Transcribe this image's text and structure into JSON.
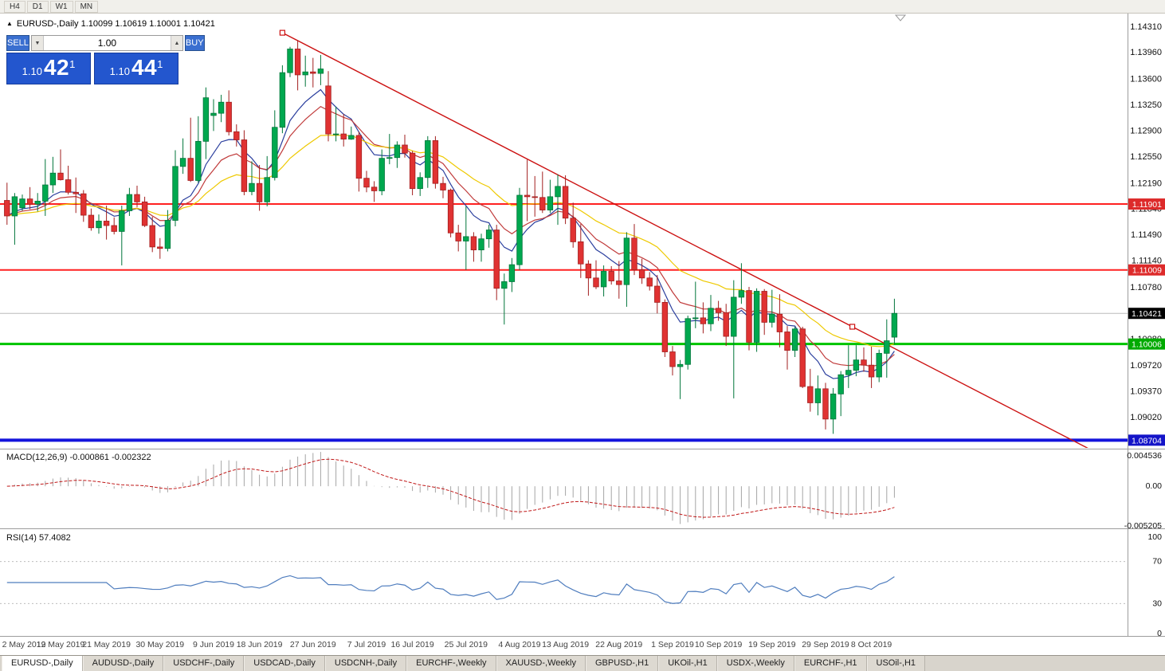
{
  "toolbar": {
    "timeframes": [
      "H4",
      "D1",
      "W1",
      "MN"
    ]
  },
  "chart_header": {
    "title": "EURUSD-,Daily 1.10099 1.10619 1.10001 1.10421"
  },
  "trade_panel": {
    "sell_label": "SELL",
    "buy_label": "BUY",
    "volume": "1.00",
    "sell_price": {
      "prefix": "1.10",
      "big": "42",
      "sup": "1"
    },
    "buy_price": {
      "prefix": "1.10",
      "big": "44",
      "sup": "1"
    },
    "accent_color": "#2356CE"
  },
  "tabs": {
    "active_index": 0,
    "items": [
      "EURUSD-,Daily",
      "AUDUSD-,Daily",
      "USDCHF-,Daily",
      "USDCAD-,Daily",
      "USDCNH-,Daily",
      "EURCHF-,Weekly",
      "XAUUSD-,Weekly",
      "GBPUSD-,H1",
      "UKOil-,H1",
      "USDX-,Weekly",
      "EURCHF-,H1",
      "USOil-,H1"
    ]
  },
  "chart_data": {
    "type": "candlestick",
    "symbol": "EURUSD-,Daily",
    "ohlc_display": {
      "open": "1.10099",
      "high": "1.10619",
      "low": "1.10001",
      "close": "1.10421"
    },
    "colors": {
      "up": "#00A84F",
      "up_border": "#00753A",
      "down": "#E03232",
      "down_border": "#A21F1F",
      "background": "#FFFFFF"
    },
    "price_axis": {
      "min": 1.086,
      "max": 1.1448,
      "ticks": [
        "1.14310",
        "1.13960",
        "1.13600",
        "1.13250",
        "1.12900",
        "1.12550",
        "1.12190",
        "1.11840",
        "1.11490",
        "1.11140",
        "1.10780",
        "1.10420",
        "1.10080",
        "1.09720",
        "1.09370",
        "1.09020"
      ]
    },
    "current_price": {
      "value": 1.10421,
      "label": "1.10421",
      "line_color": "#BBBBBB",
      "label_bg": "#000000"
    },
    "hlines": [
      {
        "price": 1.11901,
        "color": "#FF2020",
        "width": 2,
        "label": "1.11901",
        "label_bg": "#DD2A2A"
      },
      {
        "price": 1.11009,
        "color": "#FF2020",
        "width": 2,
        "label": "1.11009",
        "label_bg": "#DD2A2A"
      },
      {
        "price": 1.10006,
        "color": "#00C400",
        "width": 3,
        "label": "1.10006",
        "label_bg": "#00AA00"
      },
      {
        "price": 1.08704,
        "color": "#1414DC",
        "width": 4,
        "label": "1.08704",
        "label_bg": "#1414C8"
      }
    ],
    "trendline": {
      "color": "#CC1111",
      "points": [
        [
          36,
          1.1422
        ],
        [
          185,
          1.0626
        ]
      ],
      "handles": [
        [
          36,
          1.1422
        ],
        [
          110.5,
          1.1024
        ]
      ]
    },
    "moving_averages": [
      {
        "period": 8,
        "type": "ema",
        "color": "#2B3F9E"
      },
      {
        "period": 13,
        "type": "ema",
        "color": "#C03A3A"
      },
      {
        "period": 26,
        "type": "ema",
        "color": "#EEC900"
      }
    ],
    "date_ticks": [
      {
        "i": 0,
        "label": "2 May 2019"
      },
      {
        "i": 7,
        "label": "12 May 2019"
      },
      {
        "i": 13,
        "label": "21 May 2019"
      },
      {
        "i": 20,
        "label": "30 May 2019"
      },
      {
        "i": 27,
        "label": "9 Jun 2019"
      },
      {
        "i": 33,
        "label": "18 Jun 2019"
      },
      {
        "i": 40,
        "label": "27 Jun 2019"
      },
      {
        "i": 47,
        "label": "7 Jul 2019"
      },
      {
        "i": 53,
        "label": "16 Jul 2019"
      },
      {
        "i": 60,
        "label": "25 Jul 2019"
      },
      {
        "i": 67,
        "label": "4 Aug 2019"
      },
      {
        "i": 73,
        "label": "13 Aug 2019"
      },
      {
        "i": 80,
        "label": "22 Aug 2019"
      },
      {
        "i": 87,
        "label": "1 Sep 2019"
      },
      {
        "i": 93,
        "label": "10 Sep 2019"
      },
      {
        "i": 100,
        "label": "19 Sep 2019"
      },
      {
        "i": 107,
        "label": "29 Sep 2019"
      },
      {
        "i": 113,
        "label": "8 Oct 2019"
      }
    ],
    "candles": [
      [
        1.1195,
        1.1219,
        1.1162,
        1.1174
      ],
      [
        1.1174,
        1.1205,
        1.1135,
        1.12
      ],
      [
        1.1185,
        1.1203,
        1.1181,
        1.1197
      ],
      [
        1.1197,
        1.1213,
        1.1183,
        1.119
      ],
      [
        1.119,
        1.1205,
        1.118,
        1.1194
      ],
      [
        1.1194,
        1.1251,
        1.1174,
        1.1216
      ],
      [
        1.1216,
        1.1254,
        1.1205,
        1.1232
      ],
      [
        1.1232,
        1.1264,
        1.1222,
        1.1223
      ],
      [
        1.1223,
        1.1242,
        1.1203,
        1.1206
      ],
      [
        1.1206,
        1.1226,
        1.1178,
        1.1204
      ],
      [
        1.1204,
        1.1209,
        1.1166,
        1.1175
      ],
      [
        1.1175,
        1.1184,
        1.1154,
        1.1158
      ],
      [
        1.1158,
        1.1176,
        1.115,
        1.1167
      ],
      [
        1.1167,
        1.1188,
        1.1142,
        1.1161
      ],
      [
        1.1161,
        1.1172,
        1.1149,
        1.1153
      ],
      [
        1.1153,
        1.1188,
        1.1107,
        1.1181
      ],
      [
        1.1181,
        1.1212,
        1.1174,
        1.1203
      ],
      [
        1.1203,
        1.1215,
        1.1186,
        1.1193
      ],
      [
        1.1193,
        1.12,
        1.1159,
        1.1161
      ],
      [
        1.1161,
        1.1173,
        1.1125,
        1.1132
      ],
      [
        1.1132,
        1.1144,
        1.1116,
        1.113
      ],
      [
        1.113,
        1.1182,
        1.1126,
        1.1168
      ],
      [
        1.1168,
        1.1263,
        1.116,
        1.1241
      ],
      [
        1.1241,
        1.1279,
        1.1231,
        1.1252
      ],
      [
        1.1252,
        1.1307,
        1.122,
        1.1222
      ],
      [
        1.1222,
        1.1309,
        1.1219,
        1.1275
      ],
      [
        1.1275,
        1.1348,
        1.1251,
        1.1334
      ],
      [
        1.131,
        1.1332,
        1.1289,
        1.1313
      ],
      [
        1.1313,
        1.1338,
        1.1301,
        1.1328
      ],
      [
        1.1328,
        1.1344,
        1.1283,
        1.1288
      ],
      [
        1.1288,
        1.1298,
        1.1268,
        1.1277
      ],
      [
        1.1277,
        1.129,
        1.1202,
        1.1207
      ],
      [
        1.1207,
        1.1248,
        1.1202,
        1.1218
      ],
      [
        1.1218,
        1.1243,
        1.1181,
        1.1193
      ],
      [
        1.1193,
        1.1255,
        1.1187,
        1.1226
      ],
      [
        1.1226,
        1.1317,
        1.1222,
        1.1294
      ],
      [
        1.1294,
        1.1378,
        1.1286,
        1.1368
      ],
      [
        1.1368,
        1.1403,
        1.1362,
        1.14
      ],
      [
        1.14,
        1.1412,
        1.1344,
        1.1365
      ],
      [
        1.1365,
        1.1391,
        1.1349,
        1.1369
      ],
      [
        1.1369,
        1.1388,
        1.1348,
        1.1367
      ],
      [
        1.1367,
        1.1392,
        1.1351,
        1.1373
      ],
      [
        1.135,
        1.137,
        1.1275,
        1.1285
      ],
      [
        1.1285,
        1.1322,
        1.1275,
        1.1285
      ],
      [
        1.1285,
        1.1312,
        1.1268,
        1.1278
      ],
      [
        1.1278,
        1.1295,
        1.1277,
        1.1283
      ],
      [
        1.1283,
        1.1288,
        1.1207,
        1.1225
      ],
      [
        1.1225,
        1.1235,
        1.1206,
        1.1213
      ],
      [
        1.1213,
        1.1221,
        1.1193,
        1.1208
      ],
      [
        1.1208,
        1.1264,
        1.1202,
        1.1252
      ],
      [
        1.1252,
        1.1285,
        1.1244,
        1.1253
      ],
      [
        1.1253,
        1.1275,
        1.1239,
        1.127
      ],
      [
        1.127,
        1.1284,
        1.1253,
        1.1259
      ],
      [
        1.1259,
        1.1262,
        1.1202,
        1.1211
      ],
      [
        1.1211,
        1.1233,
        1.1201,
        1.1226
      ],
      [
        1.1226,
        1.1282,
        1.1212,
        1.1276
      ],
      [
        1.1276,
        1.1282,
        1.1211,
        1.1218
      ],
      [
        1.1218,
        1.1227,
        1.1198,
        1.1209
      ],
      [
        1.1209,
        1.1211,
        1.1145,
        1.1151
      ],
      [
        1.1151,
        1.1162,
        1.1126,
        1.114
      ],
      [
        1.114,
        1.1187,
        1.1101,
        1.1146
      ],
      [
        1.1146,
        1.1152,
        1.1112,
        1.1128
      ],
      [
        1.1128,
        1.115,
        1.1112,
        1.1143
      ],
      [
        1.1143,
        1.1162,
        1.1131,
        1.1155
      ],
      [
        1.1155,
        1.1162,
        1.106,
        1.1076
      ],
      [
        1.1076,
        1.1096,
        1.1027,
        1.1085
      ],
      [
        1.1085,
        1.1117,
        1.1071,
        1.1108
      ],
      [
        1.1108,
        1.1212,
        1.1101,
        1.1202
      ],
      [
        1.1202,
        1.125,
        1.1167,
        1.12
      ],
      [
        1.12,
        1.1228,
        1.1173,
        1.1199
      ],
      [
        1.1199,
        1.1234,
        1.1178,
        1.1182
      ],
      [
        1.1182,
        1.1223,
        1.1178,
        1.12
      ],
      [
        1.12,
        1.123,
        1.1162,
        1.1214
      ],
      [
        1.1214,
        1.1229,
        1.1163,
        1.1171
      ],
      [
        1.1171,
        1.1192,
        1.1131,
        1.1139
      ],
      [
        1.1139,
        1.1163,
        1.109,
        1.1109
      ],
      [
        1.1109,
        1.1114,
        1.1066,
        1.109
      ],
      [
        1.109,
        1.1114,
        1.1075,
        1.1078
      ],
      [
        1.1078,
        1.1107,
        1.1065,
        1.1099
      ],
      [
        1.1099,
        1.1106,
        1.1081,
        1.1086
      ],
      [
        1.1086,
        1.1113,
        1.1062,
        1.1081
      ],
      [
        1.1081,
        1.1152,
        1.1051,
        1.1144
      ],
      [
        1.1144,
        1.1163,
        1.1094,
        1.1101
      ],
      [
        1.1101,
        1.1116,
        1.1082,
        1.109
      ],
      [
        1.109,
        1.1098,
        1.1073,
        1.1079
      ],
      [
        1.1079,
        1.1094,
        1.1042,
        1.1057
      ],
      [
        1.1057,
        1.1061,
        1.0983,
        1.099
      ],
      [
        1.099,
        1.0998,
        1.0958,
        1.097
      ],
      [
        1.097,
        1.0979,
        1.0926,
        1.0973
      ],
      [
        1.0973,
        1.1039,
        1.0966,
        1.1035
      ],
      [
        1.1035,
        1.1085,
        1.1022,
        1.1036
      ],
      [
        1.1036,
        1.1057,
        1.1015,
        1.1028
      ],
      [
        1.1028,
        1.1067,
        1.1018,
        1.1049
      ],
      [
        1.1049,
        1.1059,
        1.1032,
        1.1043
      ],
      [
        1.1043,
        1.1055,
        1.0998,
        1.1011
      ],
      [
        1.1011,
        1.1087,
        1.0927,
        1.1064
      ],
      [
        1.1064,
        1.111,
        1.1055,
        1.1073
      ],
      [
        1.1073,
        1.1078,
        1.0992,
        1.1003
      ],
      [
        1.1003,
        1.1076,
        1.099,
        1.1072
      ],
      [
        1.1072,
        1.1075,
        1.1013,
        1.103
      ],
      [
        1.103,
        1.1074,
        1.1023,
        1.1041
      ],
      [
        1.1041,
        1.1068,
        1.0996,
        1.1017
      ],
      [
        1.1017,
        1.1025,
        1.0966,
        1.0992
      ],
      [
        1.0992,
        1.1024,
        1.0983,
        1.1021
      ],
      [
        1.1021,
        1.1024,
        1.0941,
        1.0943
      ],
      [
        1.0943,
        1.0967,
        1.0909,
        1.0921
      ],
      [
        1.0921,
        1.0958,
        1.0904,
        1.094
      ],
      [
        1.094,
        1.0948,
        1.0885,
        1.0899
      ],
      [
        1.0899,
        1.0941,
        1.0879,
        1.0933
      ],
      [
        1.0933,
        1.0964,
        1.0903,
        1.0959
      ],
      [
        1.0959,
        1.0999,
        1.0941,
        1.0965
      ],
      [
        1.0965,
        1.0999,
        1.0957,
        1.0979
      ],
      [
        1.0979,
        1.0996,
        1.0963,
        1.0972
      ],
      [
        1.0972,
        1.0997,
        1.0941,
        1.0956
      ],
      [
        1.0956,
        1.0993,
        1.0949,
        1.0988
      ],
      [
        1.0988,
        1.1034,
        1.0955,
        1.1005
      ],
      [
        1.10099,
        1.10619,
        1.10001,
        1.10421
      ]
    ],
    "macd": {
      "label": "MACD(12,26,9)",
      "values": "-0.000861 -0.002322",
      "fast": 12,
      "slow": 26,
      "signal": 9,
      "axis": {
        "max": 0.004536,
        "min": -0.005205,
        "ticks": [
          "0.004536",
          "0.00",
          "-0.005205"
        ]
      },
      "hist_color": "#A6A6A6",
      "signal_color": "#C01818"
    },
    "rsi": {
      "label": "RSI(14)",
      "value": "57.4082",
      "period": 14,
      "levels": [
        70,
        30
      ],
      "axis_ticks": [
        "100",
        "70",
        "30",
        "0"
      ],
      "line_color": "#4F7DBE",
      "level_color": "#BDBDBD"
    }
  }
}
